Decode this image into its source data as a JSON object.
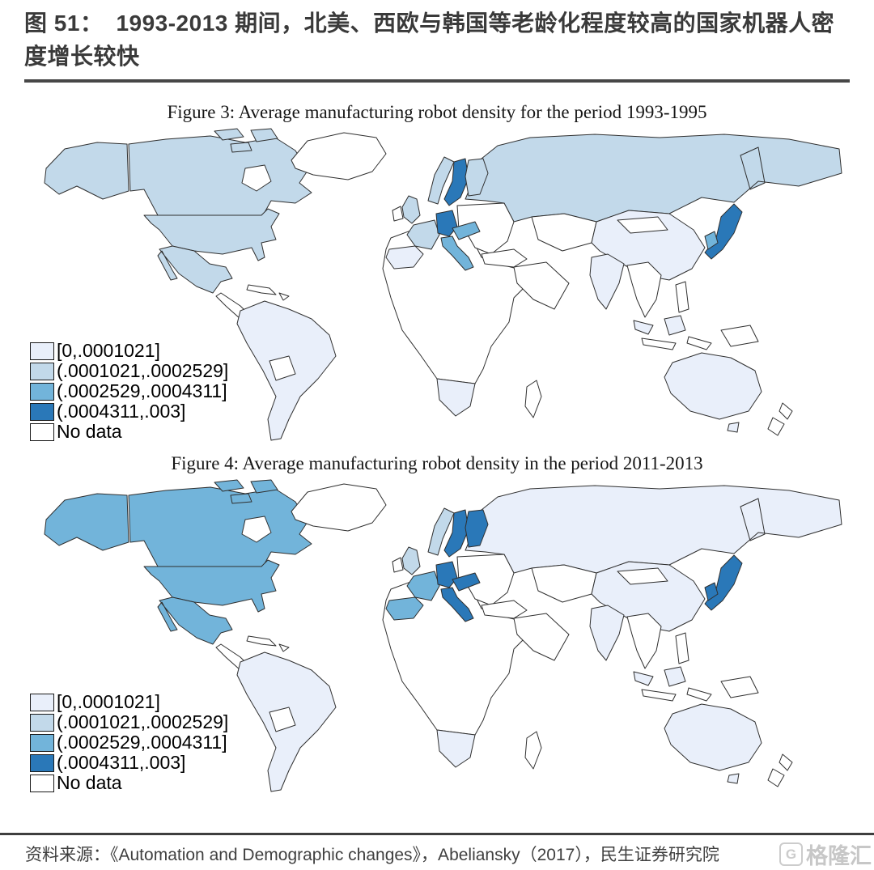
{
  "header": {
    "label": "图 51：",
    "title": "1993-2013 期间，北美、西欧与韩国等老龄化程度较高的国家机器人密度增长较快"
  },
  "legend": {
    "items": [
      {
        "key": "c1",
        "label": "[0,.0001021]",
        "color": "#e9effa"
      },
      {
        "key": "c2",
        "label": "(.0001021,.0002529]",
        "color": "#c2d9ea"
      },
      {
        "key": "c3",
        "label": "(.0002529,.0004311]",
        "color": "#72b4da"
      },
      {
        "key": "c4",
        "label": "(.0004311,.003]",
        "color": "#2a78b8"
      },
      {
        "key": "nd",
        "label": "No data",
        "color": "#ffffff"
      }
    ]
  },
  "chart_data": [
    {
      "type": "choropleth",
      "title": "Figure 3: Average manufacturing robot density for the period 1993-1995",
      "legend_position": "bottom-left",
      "regions": {
        "russia": "c2",
        "canada": "c2",
        "arctic_islands": "c2",
        "hudson_bay": "nd",
        "alaska": "c2",
        "usa": "c2",
        "greenland": "nd",
        "mexico": "c2",
        "central_america": "nd",
        "caribbean": "nd",
        "south_america": "c1",
        "bolivia_paraguay": "nd",
        "africa": "nd",
        "south_africa": "c1",
        "madagascar": "nd",
        "eastern_europe": "nd",
        "norway": "c2",
        "sweden": "c4",
        "finland": "c2",
        "uk": "c2",
        "ireland": "nd",
        "france": "c2",
        "iberia": "c1",
        "germany": "c4",
        "alpine_central_europe": "c3",
        "italy": "c3",
        "turkey_greece": "nd",
        "middle_east": "nd",
        "central_asia": "nd",
        "china": "c1",
        "mongolia": "nd",
        "india": "c1",
        "southeast_asia": "nd",
        "malaysia": "c1",
        "indonesia": "nd",
        "philippines": "nd",
        "papua_new_guinea": "nd",
        "japan": "c4",
        "south_korea": "c3",
        "australia": "c1",
        "new_zealand": "nd"
      }
    },
    {
      "type": "choropleth",
      "title": "Figure 4: Average manufacturing robot density in the period 2011-2013",
      "legend_position": "bottom-left",
      "regions": {
        "russia": "c1",
        "canada": "c3",
        "arctic_islands": "c3",
        "hudson_bay": "nd",
        "alaska": "c3",
        "usa": "c3",
        "greenland": "nd",
        "mexico": "c3",
        "central_america": "nd",
        "caribbean": "nd",
        "south_america": "c1",
        "bolivia_paraguay": "nd",
        "africa": "nd",
        "south_africa": "c1",
        "madagascar": "nd",
        "eastern_europe": "nd",
        "norway": "c2",
        "sweden": "c4",
        "finland": "c4",
        "uk": "c2",
        "ireland": "nd",
        "france": "c3",
        "iberia": "c3",
        "germany": "c4",
        "alpine_central_europe": "c4",
        "italy": "c4",
        "turkey_greece": "nd",
        "middle_east": "nd",
        "central_asia": "nd",
        "china": "c1",
        "mongolia": "nd",
        "india": "c1",
        "southeast_asia": "nd",
        "malaysia": "c1",
        "indonesia": "nd",
        "philippines": "nd",
        "papua_new_guinea": "nd",
        "japan": "c4",
        "south_korea": "c4",
        "australia": "c1",
        "new_zealand": "nd"
      }
    }
  ],
  "footer": {
    "source": "资料来源：《Automation and Demographic changes》，Abeliansky（2017），民生证券研究院"
  },
  "watermark": {
    "logo_text": "G",
    "text": "格隆汇"
  }
}
